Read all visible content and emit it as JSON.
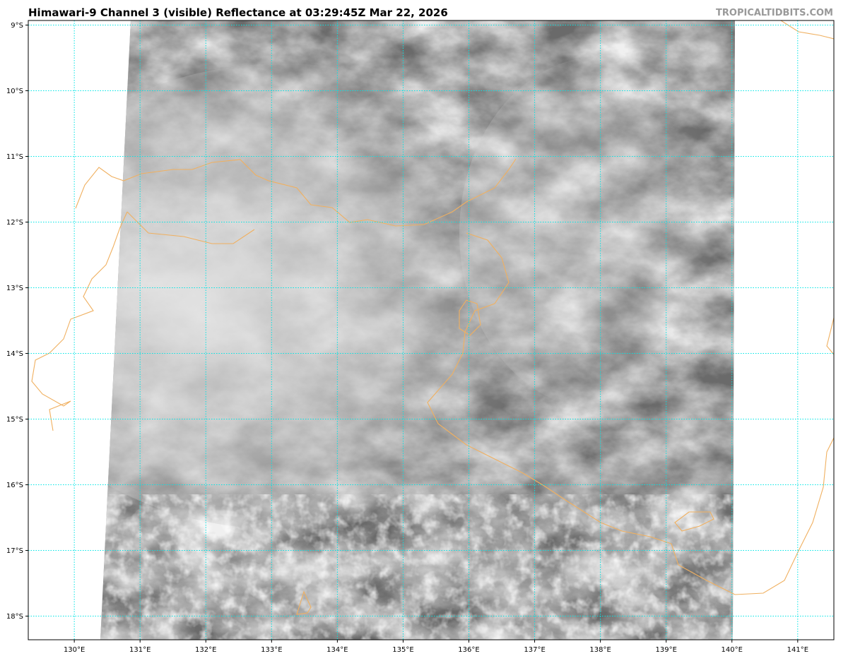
{
  "title": "Himawari-9 Channel 3 (visible) Reflectance at 03:29:45Z Mar 22, 2026",
  "brand": "TROPICALTIDBITS.COM",
  "map": {
    "lon_range": [
      129.3,
      141.55
    ],
    "lat_range": [
      -8.93,
      -18.36
    ],
    "gridline_color": "#00e5e5",
    "coastline_color": "#f0b060",
    "lon_ticks": [
      {
        "value": 130,
        "label": "130°E"
      },
      {
        "value": 131,
        "label": "131°E"
      },
      {
        "value": 132,
        "label": "132°E"
      },
      {
        "value": 133,
        "label": "133°E"
      },
      {
        "value": 134,
        "label": "134°E"
      },
      {
        "value": 135,
        "label": "135°E"
      },
      {
        "value": 136,
        "label": "136°E"
      },
      {
        "value": 137,
        "label": "137°E"
      },
      {
        "value": 138,
        "label": "138°E"
      },
      {
        "value": 139,
        "label": "139°E"
      },
      {
        "value": 140,
        "label": "140°E"
      },
      {
        "value": 141,
        "label": "141°E"
      }
    ],
    "lat_ticks": [
      {
        "value": -9,
        "label": "9°S"
      },
      {
        "value": -10,
        "label": "10°S"
      },
      {
        "value": -11,
        "label": "11°S"
      },
      {
        "value": -12,
        "label": "12°S"
      },
      {
        "value": -13,
        "label": "13°S"
      },
      {
        "value": -14,
        "label": "14°S"
      },
      {
        "value": -15,
        "label": "15°S"
      },
      {
        "value": -16,
        "label": "16°S"
      },
      {
        "value": -17,
        "label": "17°S"
      },
      {
        "value": -18,
        "label": "18°S"
      }
    ]
  }
}
